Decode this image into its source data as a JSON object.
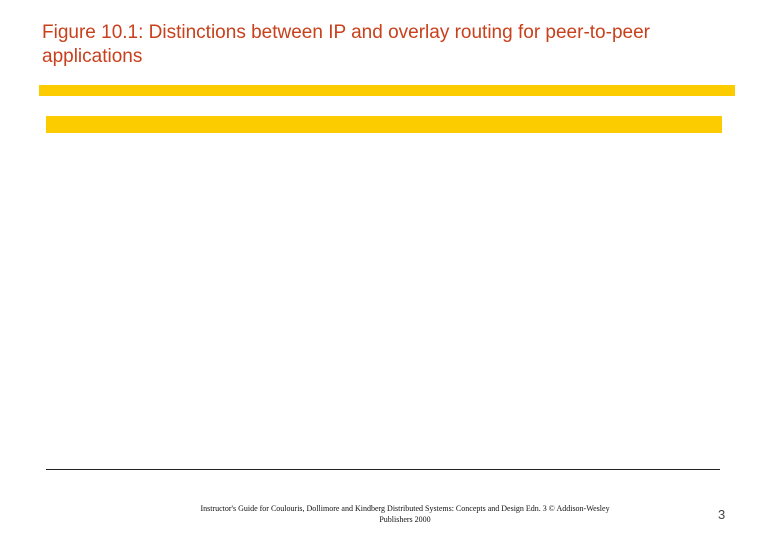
{
  "slide": {
    "title": "Figure 10.1: Distinctions between IP and overlay routing for peer-to-peer applications",
    "footer_line1": "Instructor's Guide for Coulouris, Dollimore and Kindberg Distributed Systems: Concepts and Design Edn. 3 © Addison-Wesley",
    "footer_line2": "Publishers 2000",
    "page_number": "3",
    "colors": {
      "title": "#c8401c",
      "accent_bar": "#fccc00"
    }
  }
}
